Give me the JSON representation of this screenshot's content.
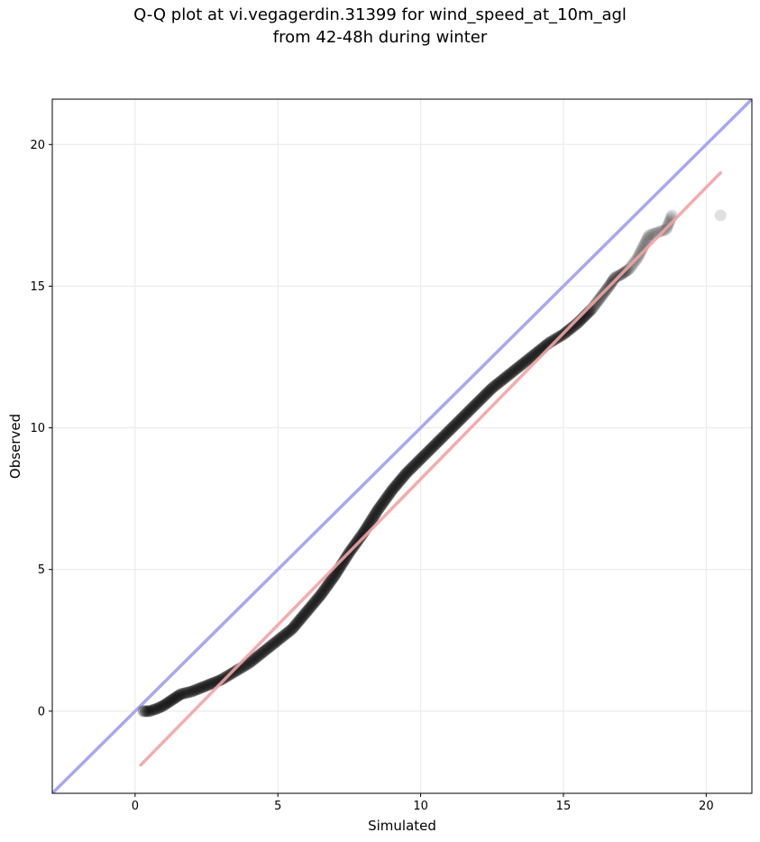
{
  "chart_data": {
    "type": "scatter",
    "title_lines": [
      "Q-Q plot at vi.vegagerdin.31399 for wind_speed_at_10m_agl",
      "from 42-48h during winter"
    ],
    "xlabel": "Simulated",
    "ylabel": "Observed",
    "xlim": [
      -2.9,
      21.6
    ],
    "ylim": [
      -2.9,
      21.6
    ],
    "xticks": [
      0,
      5,
      10,
      15,
      20
    ],
    "yticks": [
      0,
      5,
      10,
      15,
      20
    ],
    "grid": true,
    "colors": {
      "points": "#000000",
      "identity_line": "#a8a8f0",
      "fit_line": "#f2a3a3",
      "grid": "#ebebeb"
    },
    "identity_line": {
      "label_visible": false,
      "slope": 1,
      "intercept": 0
    },
    "fit_line": {
      "x": [
        0.2,
        20.5
      ],
      "y": [
        -1.9,
        19.0
      ]
    },
    "quantiles": {
      "x": [
        0.3,
        0.5,
        0.8,
        1.0,
        1.3,
        1.6,
        2.0,
        2.5,
        3.0,
        3.5,
        4.0,
        4.5,
        5.0,
        5.5,
        6.0,
        6.5,
        7.0,
        7.5,
        8.0,
        8.5,
        9.0,
        9.5,
        10.0,
        10.5,
        11.0,
        11.5,
        12.0,
        12.5,
        13.0,
        13.5,
        14.0,
        14.5,
        15.0,
        15.5,
        16.0,
        16.3,
        16.6,
        16.8,
        17.0,
        17.3,
        17.6,
        17.8,
        18.0,
        18.6,
        18.8,
        20.5
      ],
      "y": [
        0.0,
        0.0,
        0.1,
        0.2,
        0.4,
        0.6,
        0.7,
        0.9,
        1.1,
        1.4,
        1.7,
        2.1,
        2.5,
        2.9,
        3.5,
        4.1,
        4.8,
        5.6,
        6.3,
        7.1,
        7.8,
        8.4,
        8.9,
        9.4,
        9.9,
        10.4,
        10.9,
        11.4,
        11.8,
        12.2,
        12.6,
        13.0,
        13.3,
        13.7,
        14.2,
        14.6,
        15.0,
        15.3,
        15.4,
        15.6,
        16.0,
        16.4,
        16.8,
        17.0,
        17.5,
        17.5
      ]
    }
  }
}
